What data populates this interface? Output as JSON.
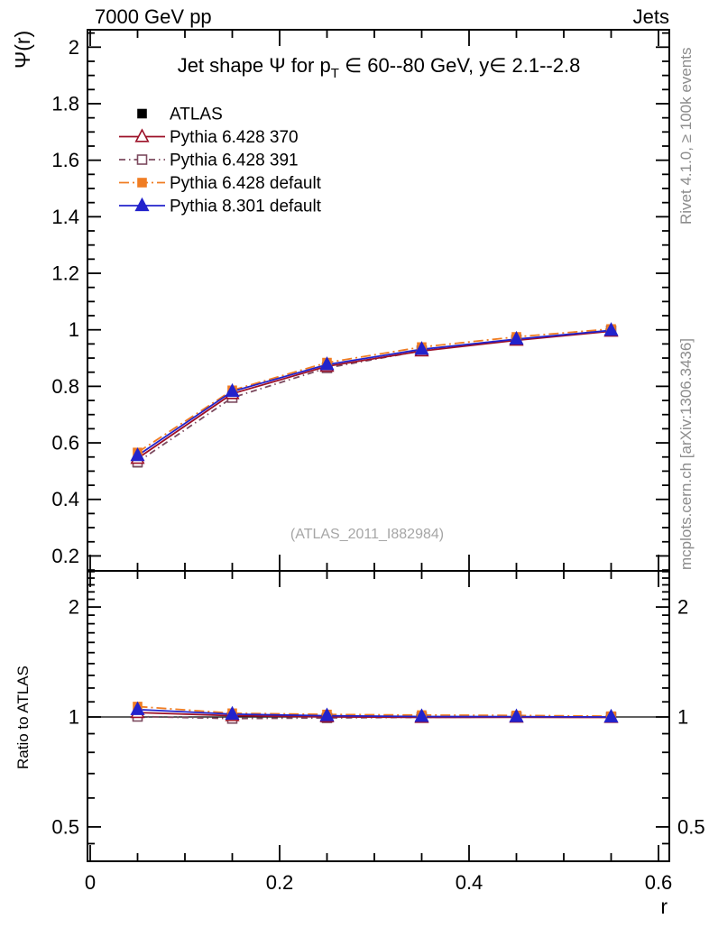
{
  "header": {
    "left": "7000 GeV pp",
    "right": "Jets"
  },
  "title": {
    "part1": "Jet shape Ψ for p",
    "sub": "T",
    "part2": " ∈ 60--80 GeV, y∈ 2.1--2.8"
  },
  "watermark": "(ATLAS_2011_I882984)",
  "side_notes": {
    "top": "Rivet 4.1.0, ≥ 100k events",
    "bottom": "mcplots.cern.ch [arXiv:1306.3436]"
  },
  "colors": {
    "atlas": "#000000",
    "pythia6_370": "#9c1027",
    "pythia6_391": "#7c4a5f",
    "pythia6_default": "#f07d23",
    "pythia8_default": "#2222cc",
    "frame": "#000000",
    "side_text": "#8c8c8c",
    "watermark": "#a6a6a6"
  },
  "chart_data": {
    "type": "line",
    "x": [
      0.05,
      0.15,
      0.25,
      0.35,
      0.45,
      0.55
    ],
    "xlabel": "r",
    "x_axis": {
      "range": [
        -0.003,
        0.6114
      ],
      "major_ticks": [
        0,
        0.2,
        0.4,
        0.6
      ],
      "labels": [
        "0",
        "0.2",
        "0.4",
        "0.6"
      ],
      "minor_step": 0.05
    },
    "main_panel": {
      "ylabel": "Ψ(r)",
      "scale": "linear",
      "range": [
        0.147,
        2.062
      ],
      "major_ticks": [
        0.2,
        0.4,
        0.6,
        0.8,
        1.0,
        1.2,
        1.4,
        1.6,
        1.8,
        2.0
      ],
      "labels": [
        "0.2",
        "0.4",
        "0.6",
        "0.8",
        "1",
        "1.2",
        "1.4",
        "1.6",
        "1.8",
        "2"
      ],
      "minor_step": 0.05
    },
    "ratio_panel": {
      "ylabel": "Ratio to ATLAS",
      "scale": "log",
      "range": [
        0.403,
        2.512
      ],
      "major_ticks": [
        0.5,
        1,
        2
      ],
      "labels": [
        "0.5",
        "1",
        "2"
      ],
      "minor_ticks": [
        0.45,
        0.6,
        0.7,
        0.8,
        0.9,
        1.1,
        1.2,
        1.3,
        1.4,
        1.5,
        1.6,
        1.7,
        1.8,
        1.9,
        2.1,
        2.2,
        2.3,
        2.4,
        2.5
      ],
      "reference_line": 1
    },
    "series": [
      {
        "name": "ATLAS",
        "color": "#000000",
        "marker": "square",
        "filled": true,
        "size": 9,
        "line": "none",
        "dash": "",
        "psi": [
          0.53,
          0.768,
          0.87,
          0.928,
          0.965,
          0.998
        ],
        "err": [
          0.012,
          0.01,
          0.009,
          0.008,
          0.007,
          0.006
        ],
        "ratio": null
      },
      {
        "name": "Pythia 6.428 391",
        "color": "#7c4a5f",
        "marker": "square",
        "filled": false,
        "size": 10,
        "line": "dashdot",
        "dash": "7 4 1.5 4",
        "psi": [
          0.532,
          0.76,
          0.865,
          0.926,
          0.965,
          0.997
        ],
        "err": null,
        "ratio": [
          1.003,
          0.99,
          0.994,
          0.998,
          1.0,
          0.999
        ]
      },
      {
        "name": "Pythia 6.428 370",
        "color": "#9c1027",
        "marker": "triangle",
        "filled": false,
        "size": 12,
        "line": "solid",
        "dash": "",
        "psi": [
          0.545,
          0.774,
          0.871,
          0.925,
          0.963,
          0.995
        ],
        "err": null,
        "ratio": [
          1.028,
          1.008,
          1.001,
          0.997,
          0.998,
          0.997
        ]
      },
      {
        "name": "Pythia 6.428 default",
        "color": "#f07d23",
        "marker": "square",
        "filled": true,
        "size": 9,
        "line": "dashdot",
        "dash": "11 4 2 4",
        "psi": [
          0.566,
          0.786,
          0.884,
          0.939,
          0.975,
          1.003
        ],
        "err": null,
        "ratio": [
          1.068,
          1.024,
          1.016,
          1.012,
          1.01,
          1.005
        ]
      },
      {
        "name": "Pythia 8.301 default",
        "color": "#2222cc",
        "marker": "triangle",
        "filled": true,
        "size": 12,
        "line": "solid",
        "dash": "",
        "psi": [
          0.555,
          0.782,
          0.877,
          0.931,
          0.967,
          0.998
        ],
        "err": null,
        "ratio": [
          1.048,
          1.018,
          1.008,
          1.003,
          1.002,
          1.0
        ]
      }
    ],
    "legend": {
      "order": [
        "ATLAS",
        "Pythia 6.428 370",
        "Pythia 6.428 391",
        "Pythia 6.428 default",
        "Pythia 8.301 default"
      ],
      "position": "top-left"
    }
  }
}
